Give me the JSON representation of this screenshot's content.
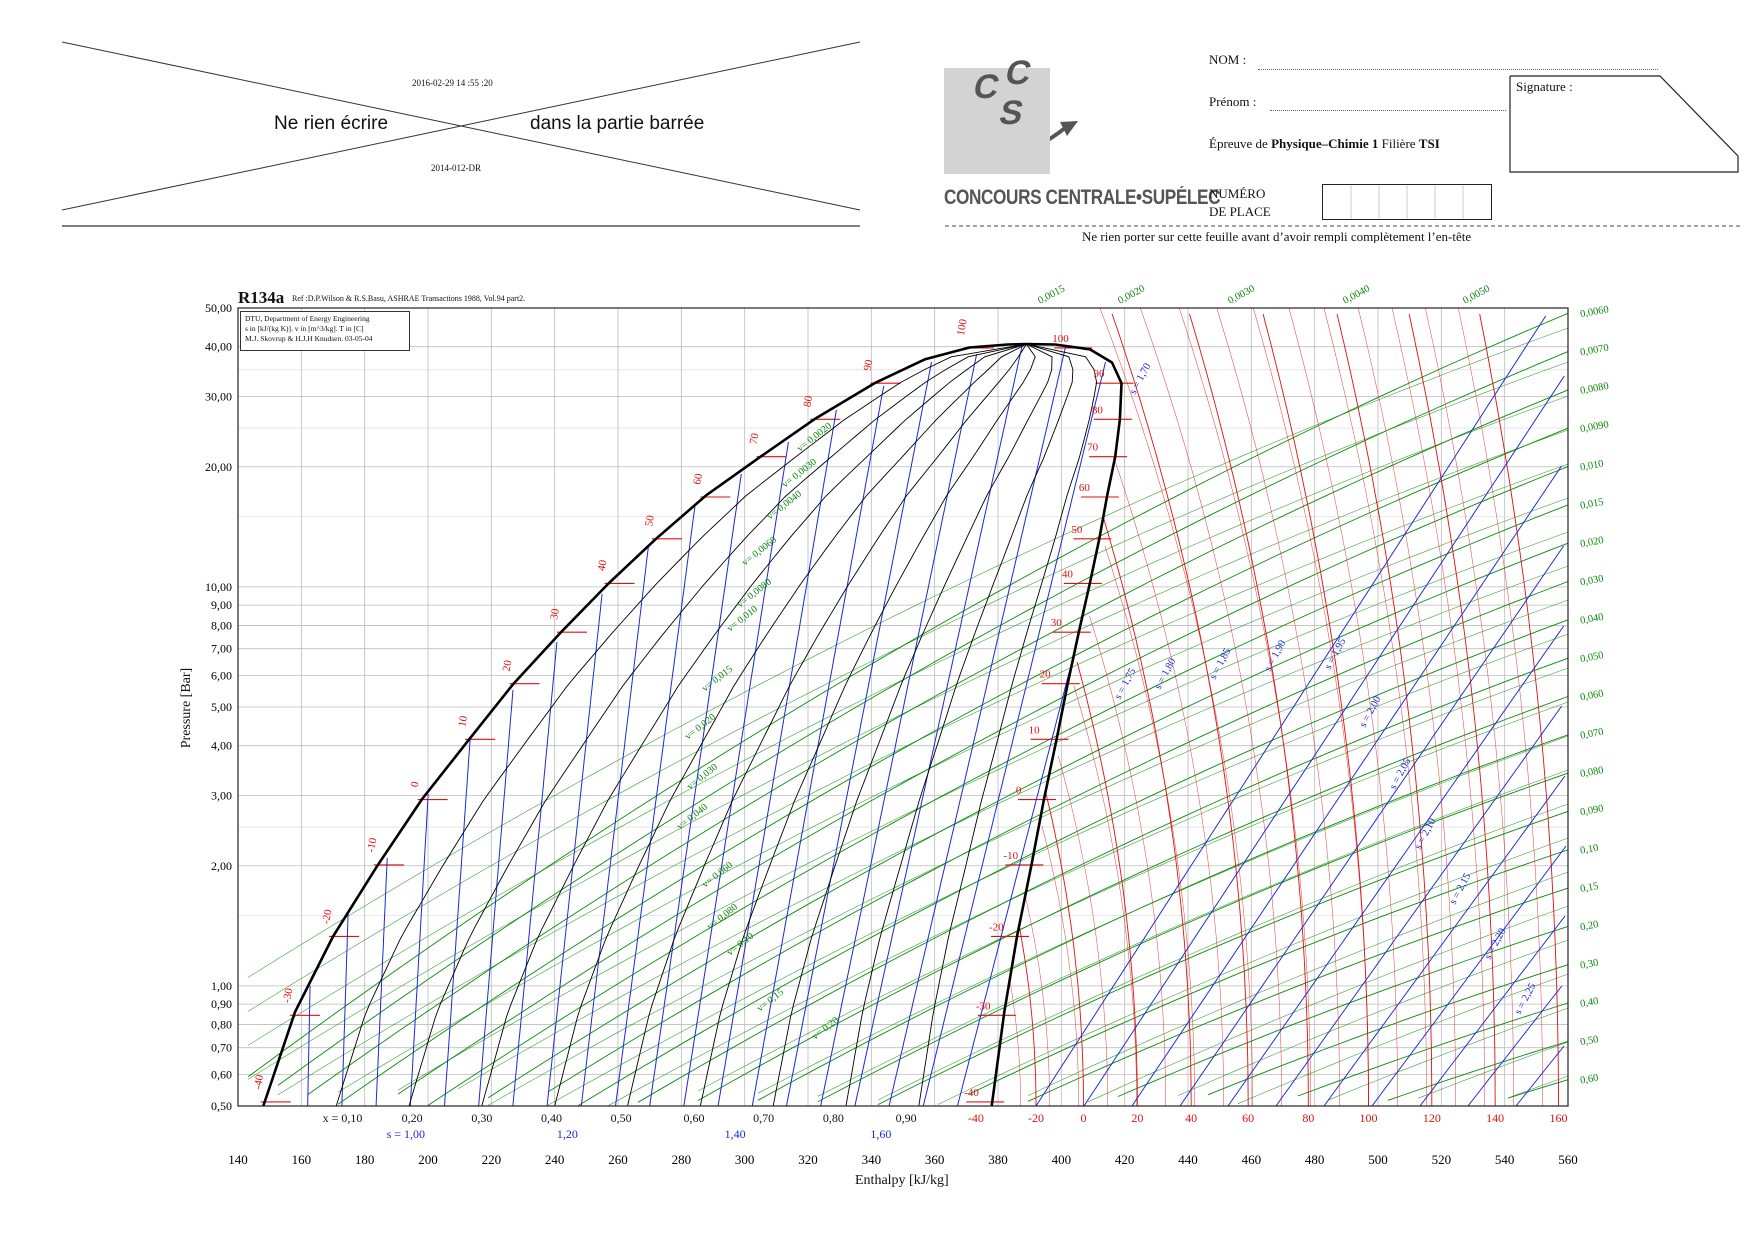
{
  "header": {
    "stamp_date": "2016-02-29 14 :55 :20",
    "stamp_code": "2014-012-DR",
    "barred_left": "Ne rien écrire",
    "barred_right": "dans la partie barrée",
    "logo_letters": [
      "C",
      "C",
      "S"
    ],
    "brand": "CONCOURS CENTRALE•SUPÉLEC",
    "nom_label": "NOM :",
    "prenom_label": "Prénom :",
    "epreuve_prefix": "Épreuve de",
    "epreuve_subject": "Physique–Chimie 1",
    "filiere_prefix": "Filière",
    "filiere_name": "TSI",
    "signature_label": "Signature :",
    "numero_label_1": "NUMÉRO",
    "numero_label_2": "DE PLACE",
    "notice": "Ne rien porter sur cette feuille avant d’avoir rempli complètement l’en-tête"
  },
  "colors": {
    "isotherm": "#e01010",
    "isochore": "#0a8a0a",
    "isentrope": "#1a2ad8",
    "quality": "#000000",
    "grid": "#bdbdbd"
  },
  "chart_data": {
    "type": "line",
    "title": "R134a",
    "reference": "Ref :D.P.Wilson & R.S.Basu, ASHRAE Transactions 1988, Vol.94 part2.",
    "info_box": [
      "DTU, Department of Energy Engineering",
      "s in [kJ/(kg K)]. v in [m^3/kg]. T in [C]",
      "M.J. Skovrup & H.J.H Knudsen. 03-05-04"
    ],
    "xlabel": "Enthalpy [kJ/kg]",
    "ylabel": "Pressure [Bar]",
    "xlim": [
      140,
      560
    ],
    "ylim": [
      0.5,
      50
    ],
    "y_scale": "log",
    "grid": true,
    "x_ticks": [
      140,
      160,
      180,
      200,
      220,
      240,
      260,
      280,
      300,
      320,
      340,
      360,
      380,
      400,
      420,
      440,
      460,
      480,
      500,
      520,
      540,
      560
    ],
    "x_tick_labels": [
      "140",
      "160",
      "180",
      "200",
      "220",
      "240",
      "260",
      "280",
      "300",
      "320",
      "340",
      "360",
      "380",
      "400",
      "420",
      "440",
      "460",
      "480",
      "500",
      "520",
      "540",
      "560"
    ],
    "y_ticks": [
      0.5,
      0.6,
      0.7,
      0.8,
      0.9,
      1,
      2,
      3,
      4,
      5,
      6,
      7,
      8,
      9,
      10,
      20,
      30,
      40,
      50
    ],
    "y_tick_labels": [
      "0,50",
      "0,60",
      "0,70",
      "0,80",
      "0,90",
      "1,00",
      "2,00",
      "3,00",
      "4,00",
      "5,00",
      "6,00",
      "7,00",
      "8,00",
      "9,00",
      "10,00",
      "20,00",
      "30,00",
      "40,00",
      "50,00"
    ],
    "critical_point": {
      "h": 389,
      "p": 40.6
    },
    "saturated_liquid": [
      [
        148,
        0.5
      ],
      [
        158,
        0.86
      ],
      [
        170,
        1.33
      ],
      [
        184,
        2.0
      ],
      [
        198,
        2.93
      ],
      [
        213,
        4.15
      ],
      [
        227,
        5.72
      ],
      [
        242,
        7.7
      ],
      [
        257,
        10.2
      ],
      [
        272,
        13.2
      ],
      [
        288,
        17.0
      ],
      [
        305,
        21.2
      ],
      [
        322,
        26.3
      ],
      [
        341,
        32.4
      ],
      [
        357,
        37.2
      ],
      [
        371,
        39.8
      ],
      [
        383,
        40.5
      ],
      [
        389,
        40.6
      ]
    ],
    "saturated_vapor": [
      [
        389,
        40.6
      ],
      [
        398,
        40.5
      ],
      [
        409,
        39.4
      ],
      [
        416,
        36.5
      ],
      [
        419,
        32.4
      ],
      [
        418.5,
        26.3
      ],
      [
        417,
        21.2
      ],
      [
        414.5,
        17.0
      ],
      [
        412,
        13.2
      ],
      [
        409,
        10.2
      ],
      [
        405.5,
        7.7
      ],
      [
        402,
        5.72
      ],
      [
        398.5,
        4.15
      ],
      [
        394.5,
        2.93
      ],
      [
        390.5,
        2.0
      ],
      [
        386,
        1.33
      ],
      [
        382,
        0.86
      ],
      [
        378,
        0.5
      ]
    ],
    "quality_labels": [
      "x = 0,10",
      "0,20",
      "0,30",
      "0,40",
      "0,50",
      "0,60",
      "0,70",
      "0,80",
      "0,90"
    ],
    "quality_label_h": [
      173,
      195,
      217,
      239,
      261,
      284,
      306,
      328,
      351
    ],
    "isotherms": [
      {
        "t": -40,
        "p": 0.512
      },
      {
        "t": -30,
        "p": 0.844
      },
      {
        "t": -20,
        "p": 1.33
      },
      {
        "t": -10,
        "p": 2.01
      },
      {
        "t": 0,
        "p": 2.93
      },
      {
        "t": 10,
        "p": 4.15
      },
      {
        "t": 20,
        "p": 5.72
      },
      {
        "t": 30,
        "p": 7.7
      },
      {
        "t": 40,
        "p": 10.2
      },
      {
        "t": 50,
        "p": 13.2
      },
      {
        "t": 60,
        "p": 16.8
      },
      {
        "t": 70,
        "p": 21.2
      },
      {
        "t": 80,
        "p": 26.3
      },
      {
        "t": 90,
        "p": 32.4
      },
      {
        "t": 100,
        "p": 39.7
      }
    ],
    "isotherm_left_labels": [
      "-40",
      "-30",
      "-20",
      "-10",
      "0",
      "10",
      "20",
      "30",
      "40",
      "50",
      "60",
      "70",
      "80",
      "90",
      "100"
    ],
    "isotherm_bottom_labels": [
      "-40",
      "-20",
      "0",
      "20",
      "40",
      "60",
      "80",
      "100",
      "120",
      "140",
      "160"
    ],
    "isotherm_bottom_h": [
      373,
      392,
      407,
      424,
      441,
      459,
      478,
      497,
      517,
      537,
      557
    ],
    "isentrope_bottom_labels": [
      "s = 1,00",
      "1,20",
      "1,40",
      "1,60"
    ],
    "isentrope_bottom_h": [
      193,
      244,
      297,
      343
    ],
    "isentrope_vapor_labels": [
      "s = 1,70",
      "s = 1,75",
      "s = 1,80",
      "s = 1,85",
      "s = 1,90",
      "s = 1,95",
      "s = 2,00",
      "s = 2,05",
      "s = 2,10",
      "s = 2,15",
      "s = 2,20",
      "s = 2,25"
    ],
    "isochore_right_labels": [
      "0,0060",
      "0,0070",
      "0,0080",
      "0,0090",
      "0,010",
      "0,015",
      "0,020",
      "0,030",
      "0,040",
      "0,050",
      "0,060",
      "0,070",
      "0,080",
      "0,090",
      "0,10",
      "0,15",
      "0,20",
      "0,30",
      "0,40",
      "0,50",
      "0,60"
    ],
    "isochore_top_labels": [
      "0,0015",
      "0,0020",
      "0,0030",
      "0,0040",
      "0,0050"
    ],
    "isochore_dome_labels": [
      "v= 0,0020",
      "v= 0,0030",
      "v= 0,0040",
      "v= 0,0060",
      "v= 0,0080",
      "v= 0,010",
      "v= 0,015",
      "v= 0,020",
      "v= 0,030",
      "v= 0,040",
      "v= 0,060",
      "v= 0,080",
      "v= 0,10",
      "v= 0,15",
      "v= 0,20"
    ]
  }
}
